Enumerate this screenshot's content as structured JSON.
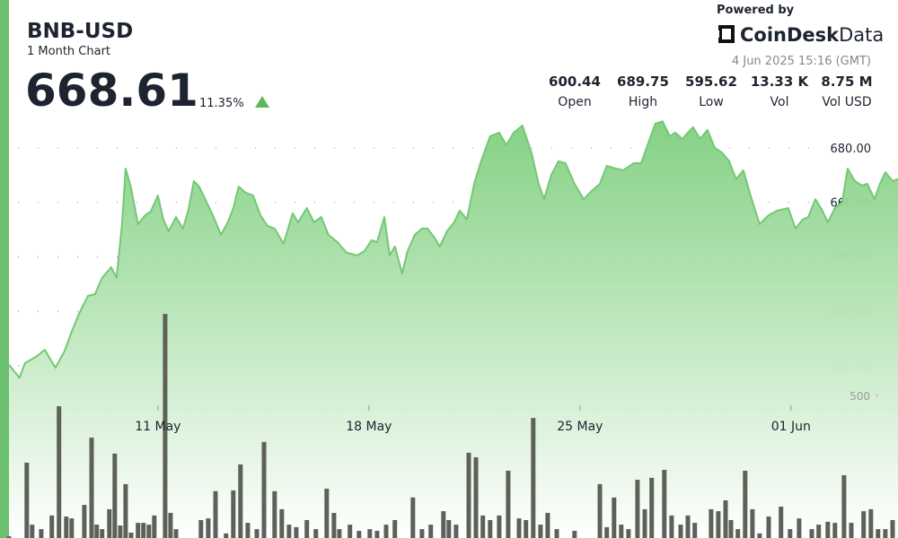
{
  "chart_data": {
    "type": "line",
    "title": "BNB-USD",
    "subtitle": "1 Month Chart",
    "price": "668.61",
    "change": "11.35%",
    "powered_by": "Powered by",
    "brand": [
      "CoinDesk",
      "Data"
    ],
    "timestamp": "4 Jun 2025 15:16 (GMT)",
    "stats": [
      {
        "value": "600.44",
        "label": "Open"
      },
      {
        "value": "689.75",
        "label": "High"
      },
      {
        "value": "595.62",
        "label": "Low"
      },
      {
        "value": "13.33 K",
        "label": "Vol"
      },
      {
        "value": "8.75 M",
        "label": "Vol USD"
      }
    ],
    "color": "#74c874",
    "xlim": [
      6.06,
      35.55
    ],
    "xticks": [
      {
        "value": 11,
        "label": "11 May"
      },
      {
        "value": 18,
        "label": "18 May"
      },
      {
        "value": 25,
        "label": "25 May"
      },
      {
        "value": 32,
        "label": "01 Jun"
      }
    ],
    "ylim": [
      536.8,
      691.5
    ],
    "yticks": [
      {
        "value": 600,
        "label": "600.00"
      },
      {
        "value": 620,
        "label": "620.00"
      },
      {
        "value": 640,
        "label": "640.00"
      },
      {
        "value": 660,
        "label": "660.00"
      },
      {
        "value": 680,
        "label": "680.00"
      }
    ],
    "grid": true,
    "x": [
      6.06,
      6.41,
      6.59,
      6.95,
      7.25,
      7.6,
      7.9,
      8.14,
      8.38,
      8.68,
      8.91,
      9.15,
      9.45,
      9.63,
      9.81,
      9.93,
      10.11,
      10.34,
      10.58,
      10.76,
      11.0,
      11.18,
      11.36,
      11.6,
      11.83,
      12.01,
      12.19,
      12.37,
      12.61,
      12.85,
      13.09,
      13.32,
      13.5,
      13.68,
      13.92,
      14.16,
      14.4,
      14.63,
      14.87,
      15.17,
      15.47,
      15.65,
      15.94,
      16.18,
      16.42,
      16.66,
      16.96,
      17.26,
      17.61,
      17.85,
      18.09,
      18.27,
      18.51,
      18.69,
      18.86,
      19.1,
      19.28,
      19.52,
      19.76,
      19.94,
      20.17,
      20.35,
      20.59,
      20.83,
      21.01,
      21.25,
      21.49,
      21.72,
      22.02,
      22.32,
      22.56,
      22.8,
      23.09,
      23.39,
      23.63,
      23.81,
      24.05,
      24.29,
      24.52,
      24.82,
      25.12,
      25.42,
      25.66,
      25.89,
      26.19,
      26.43,
      26.79,
      27.03,
      27.26,
      27.5,
      27.74,
      27.98,
      28.16,
      28.4,
      28.58,
      28.75,
      28.99,
      29.23,
      29.47,
      29.71,
      29.95,
      30.18,
      30.42,
      30.66,
      30.96,
      31.26,
      31.55,
      31.91,
      32.15,
      32.39,
      32.57,
      32.81,
      33.04,
      33.22,
      33.46,
      33.7,
      33.88,
      34.12,
      34.35,
      34.53,
      34.77,
      34.95,
      35.13,
      35.37,
      35.55
    ],
    "values": [
      600.44,
      595.62,
      601.0,
      603.3,
      605.9,
      599.3,
      605.3,
      612.5,
      619.1,
      625.7,
      626.3,
      632.3,
      636.2,
      632.3,
      652.0,
      672.4,
      665.2,
      652.0,
      655.3,
      656.6,
      662.5,
      653.7,
      649.4,
      654.6,
      650.4,
      657.0,
      667.8,
      665.8,
      660.2,
      654.6,
      648.1,
      652.7,
      657.9,
      665.8,
      663.5,
      662.5,
      655.3,
      651.4,
      650.4,
      644.8,
      656.0,
      652.7,
      657.9,
      652.7,
      654.6,
      648.1,
      645.4,
      641.5,
      640.5,
      642.1,
      646.1,
      645.4,
      654.6,
      640.5,
      643.8,
      633.9,
      642.1,
      648.1,
      650.4,
      650.4,
      647.1,
      643.8,
      649.4,
      652.7,
      657.0,
      653.7,
      666.8,
      675.1,
      684.3,
      685.6,
      681.0,
      685.6,
      688.2,
      678.3,
      666.8,
      661.2,
      670.1,
      675.1,
      674.4,
      666.8,
      661.2,
      664.5,
      666.8,
      673.4,
      672.4,
      671.8,
      674.4,
      674.4,
      681.6,
      688.9,
      689.75,
      684.3,
      685.6,
      683.3,
      685.6,
      687.6,
      683.3,
      686.6,
      680.0,
      678.3,
      675.1,
      668.5,
      671.8,
      662.5,
      652.0,
      655.3,
      657.0,
      657.9,
      650.4,
      653.7,
      654.6,
      661.2,
      657.0,
      652.7,
      657.9,
      660.2,
      672.4,
      667.8,
      666.2,
      666.8,
      661.2,
      666.8,
      671.1,
      667.8,
      668.61
    ],
    "volume": {
      "type": "bar",
      "color": "#5d6158",
      "y2lim": [
        0,
        1000
      ],
      "y2ticks": [
        500
      ],
      "x": [
        6.06,
        6.65,
        6.83,
        7.13,
        7.48,
        7.72,
        7.96,
        8.14,
        8.56,
        8.8,
        8.97,
        9.15,
        9.39,
        9.57,
        9.75,
        9.93,
        10.11,
        10.34,
        10.52,
        10.7,
        10.88,
        11.24,
        11.42,
        11.6,
        12.43,
        12.67,
        12.91,
        13.26,
        13.5,
        13.74,
        13.98,
        14.28,
        14.52,
        14.87,
        15.11,
        15.35,
        15.59,
        15.94,
        16.24,
        16.6,
        16.84,
        17.02,
        17.37,
        17.67,
        18.03,
        18.27,
        18.57,
        18.86,
        19.46,
        19.76,
        20.05,
        20.47,
        20.65,
        20.89,
        21.31,
        21.55,
        21.78,
        22.02,
        22.32,
        22.62,
        22.98,
        23.21,
        23.45,
        23.69,
        23.93,
        24.23,
        24.82,
        25.66,
        25.89,
        26.13,
        26.37,
        26.61,
        26.91,
        27.15,
        27.38,
        27.8,
        28.04,
        28.34,
        28.58,
        28.81,
        29.35,
        29.59,
        29.83,
        30.01,
        30.24,
        30.48,
        30.72,
        30.96,
        31.26,
        31.67,
        31.97,
        32.27,
        32.69,
        32.92,
        33.22,
        33.46,
        33.76,
        34.0,
        34.41,
        34.65,
        34.89,
        35.13,
        35.37
      ],
      "values": [
        6,
        264,
        47,
        31,
        79,
        462,
        75,
        69,
        116,
        352,
        47,
        31,
        101,
        296,
        44,
        189,
        19,
        53,
        53,
        47,
        79,
        786,
        88,
        31,
        63,
        69,
        164,
        16,
        167,
        258,
        53,
        31,
        337,
        164,
        101,
        47,
        38,
        63,
        31,
        173,
        88,
        31,
        47,
        25,
        31,
        25,
        47,
        63,
        142,
        31,
        47,
        94,
        63,
        47,
        299,
        283,
        79,
        63,
        79,
        236,
        69,
        63,
        421,
        47,
        88,
        31,
        25,
        189,
        38,
        142,
        47,
        31,
        204,
        101,
        211,
        239,
        79,
        47,
        79,
        53,
        101,
        94,
        132,
        63,
        31,
        236,
        101,
        16,
        75,
        110,
        31,
        69,
        31,
        47,
        57,
        53,
        220,
        53,
        94,
        101,
        31,
        31,
        63
      ]
    }
  }
}
